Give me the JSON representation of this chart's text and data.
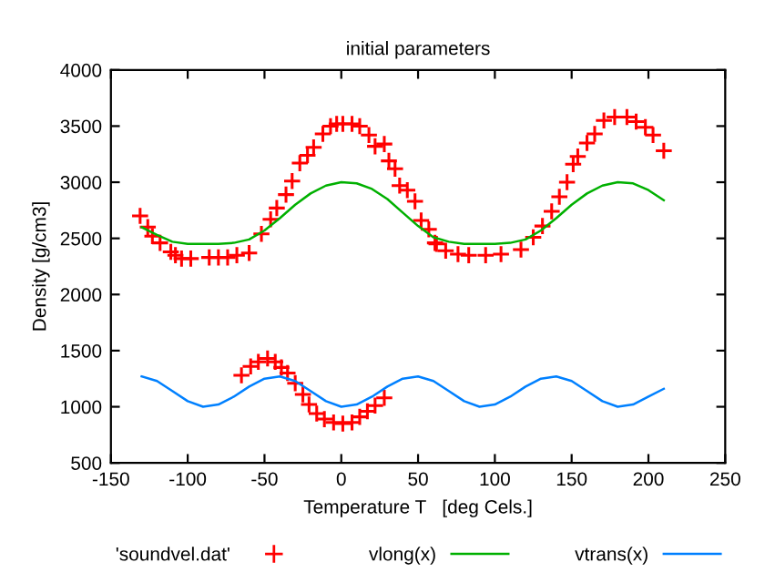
{
  "chart_data": {
    "type": "line",
    "title": "initial parameters",
    "xlabel": "Temperature T   [deg Cels.]",
    "ylabel": "Density [g/cm3]",
    "xlim": [
      -150,
      250
    ],
    "xticks": [
      -150,
      -100,
      -50,
      0,
      50,
      100,
      150,
      200,
      250
    ],
    "ylim": [
      500,
      4000
    ],
    "yticks": [
      500,
      1000,
      1500,
      2000,
      2500,
      3000,
      3500,
      4000
    ],
    "grid": false,
    "legend": "bottom",
    "series": [
      {
        "name": "'soundvel.dat'",
        "type": "scatter",
        "marker": "cross",
        "color": "#ff0000",
        "x": [
          -131,
          -126,
          -123,
          -118,
          -111,
          -108,
          -104,
          -98,
          -86,
          -80,
          -74,
          -68,
          -60,
          -52,
          -46,
          -42,
          -36,
          -32,
          -27,
          -22,
          -18,
          -12,
          -7,
          -3,
          1,
          7,
          12,
          18,
          22,
          28,
          31,
          35,
          38,
          43,
          48,
          52,
          57,
          61,
          62,
          68,
          76,
          83,
          94,
          104,
          117,
          125,
          131,
          137,
          142,
          147,
          151,
          154,
          160,
          165,
          171,
          178,
          186,
          192,
          198,
          203,
          210,
          -65,
          -59,
          -54,
          -48,
          -43,
          -39,
          -35,
          -30,
          -25,
          -21,
          -16,
          -11,
          -5,
          1,
          7,
          12,
          17,
          22,
          28
        ],
        "values": [
          2700,
          2600,
          2520,
          2460,
          2380,
          2350,
          2320,
          2320,
          2330,
          2330,
          2330,
          2350,
          2370,
          2540,
          2670,
          2770,
          2890,
          3010,
          3170,
          3240,
          3310,
          3430,
          3500,
          3520,
          3520,
          3520,
          3500,
          3420,
          3320,
          3340,
          3190,
          3120,
          2970,
          2930,
          2830,
          2660,
          2580,
          2460,
          2450,
          2390,
          2360,
          2350,
          2350,
          2360,
          2400,
          2510,
          2610,
          2740,
          2870,
          3000,
          3160,
          3230,
          3350,
          3430,
          3550,
          3580,
          3580,
          3540,
          3490,
          3420,
          3280,
          1280,
          1360,
          1400,
          1430,
          1400,
          1350,
          1300,
          1210,
          1110,
          1020,
          940,
          890,
          860,
          850,
          860,
          910,
          960,
          1010,
          1080
        ]
      },
      {
        "name": "vlong(x)",
        "color": "#00b000",
        "x": [
          -130,
          -120,
          -110,
          -100,
          -90,
          -80,
          -70,
          -60,
          -50,
          -40,
          -30,
          -20,
          -10,
          0,
          10,
          20,
          30,
          40,
          50,
          60,
          70,
          80,
          90,
          100,
          110,
          120,
          130,
          140,
          150,
          160,
          170,
          180,
          190,
          200,
          210
        ],
        "values": [
          2600,
          2530,
          2470,
          2450,
          2450,
          2450,
          2460,
          2490,
          2570,
          2680,
          2800,
          2900,
          2970,
          3000,
          2990,
          2940,
          2850,
          2730,
          2610,
          2510,
          2470,
          2450,
          2450,
          2450,
          2460,
          2490,
          2570,
          2680,
          2800,
          2900,
          2970,
          3000,
          2990,
          2930,
          2840
        ]
      },
      {
        "name": "vtrans(x)",
        "color": "#0080ff",
        "x": [
          -130,
          -120,
          -110,
          -100,
          -90,
          -80,
          -70,
          -60,
          -50,
          -40,
          -30,
          -20,
          -10,
          0,
          10,
          20,
          30,
          40,
          50,
          60,
          70,
          80,
          90,
          100,
          110,
          120,
          130,
          140,
          150,
          160,
          170,
          180,
          190,
          200,
          210
        ],
        "values": [
          1270,
          1230,
          1140,
          1050,
          1000,
          1020,
          1090,
          1180,
          1250,
          1270,
          1230,
          1140,
          1050,
          1000,
          1020,
          1090,
          1180,
          1250,
          1270,
          1230,
          1140,
          1050,
          1000,
          1020,
          1090,
          1180,
          1250,
          1270,
          1230,
          1140,
          1050,
          1000,
          1020,
          1090,
          1160
        ]
      }
    ]
  }
}
